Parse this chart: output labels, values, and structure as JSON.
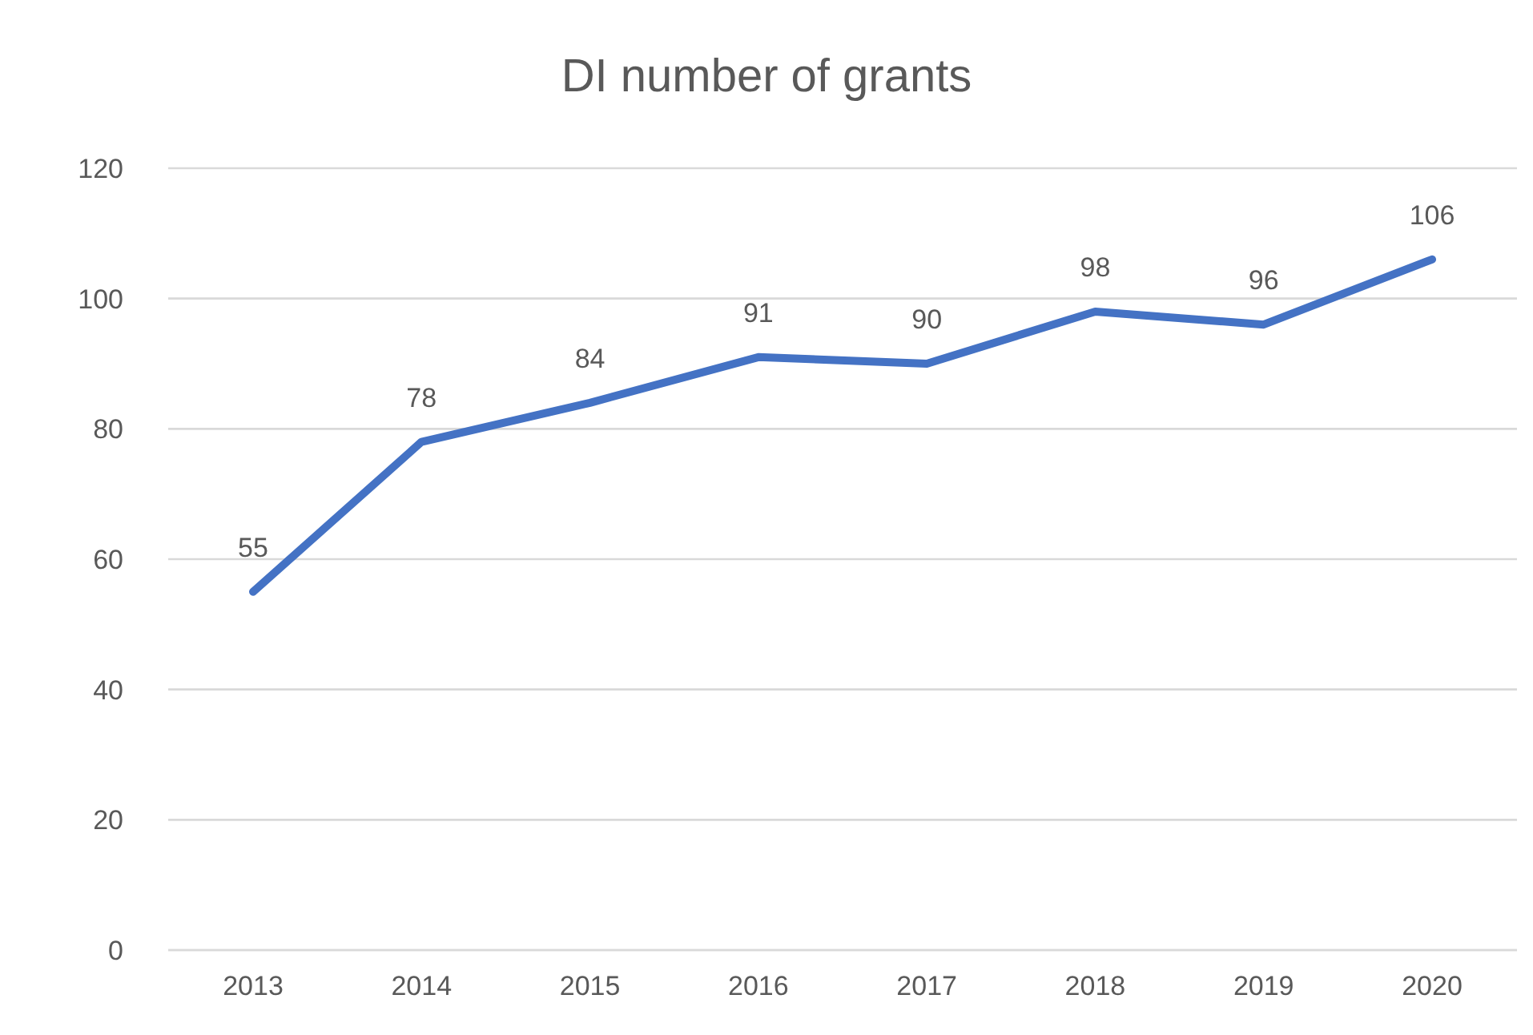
{
  "chart_data": {
    "type": "line",
    "title": "DI number of grants",
    "categories": [
      "2013",
      "2014",
      "2015",
      "2016",
      "2017",
      "2018",
      "2019",
      "2020"
    ],
    "series": [
      {
        "color": "#4472c4",
        "values": [
          55,
          78,
          84,
          91,
          90,
          98,
          96,
          106
        ]
      }
    ],
    "ylim": [
      0,
      120
    ],
    "yticks": [
      0,
      20,
      40,
      60,
      80,
      100,
      120
    ],
    "grid": "y",
    "marker": "none",
    "line_style": "solid",
    "data_labels": true
  }
}
